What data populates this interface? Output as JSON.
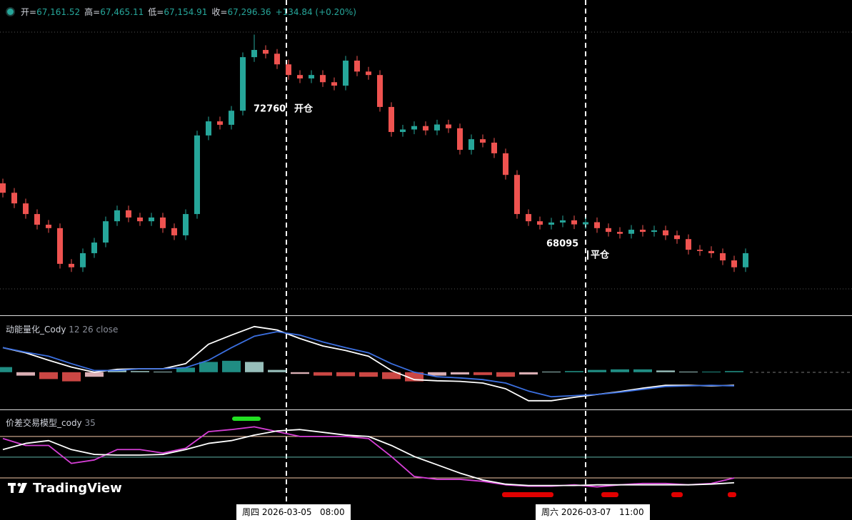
{
  "header": {
    "items": [
      {
        "label": "开=",
        "value": "67,161.52"
      },
      {
        "label": "高=",
        "value": "67,465.11"
      },
      {
        "label": "低=",
        "value": "67,154.91"
      },
      {
        "label": "收=",
        "value": "67,296.36"
      }
    ],
    "change": "+134.84 (+0.20%)"
  },
  "markers": [
    {
      "price_label": "72760",
      "label": "开仓"
    },
    {
      "price_label": "68095",
      "label": "平仓"
    }
  ],
  "crosshair_labels": [
    "周四 2026-03-05   08:00",
    "周六 2026-03-07   11:00"
  ],
  "logo": "TradingView",
  "chart_data": [
    {
      "type": "candlestick",
      "up_color": "#26a69a",
      "down_color": "#ef5350",
      "ylim": [
        65930,
        74130
      ],
      "open": [
        69300,
        69000,
        68660,
        68320,
        67980,
        67870,
        66730,
        66620,
        67070,
        67410,
        68090,
        68440,
        68210,
        68090,
        68210,
        67870,
        67640,
        68320,
        70830,
        71280,
        71170,
        71620,
        73330,
        73560,
        73440,
        73100,
        72760,
        72650,
        72760,
        72530,
        72420,
        73220,
        72870,
        72760,
        71740,
        70940,
        71020,
        71130,
        70990,
        71180,
        71060,
        70370,
        70710,
        70600,
        70260,
        69570,
        68320,
        68090,
        67980,
        68050,
        68120,
        67990,
        68060,
        67870,
        67750,
        67690,
        67820,
        67750,
        67800,
        67640,
        67520,
        67180,
        67140,
        67070,
        66840,
        66620
      ],
      "high": [
        69450,
        69150,
        68810,
        68470,
        68130,
        68020,
        66880,
        67220,
        67560,
        68240,
        68590,
        68590,
        68360,
        68360,
        68360,
        68020,
        68470,
        70980,
        71430,
        71430,
        71770,
        73480,
        74050,
        73710,
        73590,
        73250,
        72910,
        72910,
        72910,
        72680,
        73370,
        73370,
        73020,
        72910,
        71890,
        71170,
        71280,
        71280,
        71330,
        71330,
        71210,
        70860,
        70860,
        70750,
        70410,
        69720,
        68470,
        68240,
        68200,
        68270,
        68270,
        68210,
        68210,
        68020,
        67900,
        67970,
        67970,
        67950,
        67950,
        67790,
        67670,
        67330,
        67290,
        67220,
        66990,
        67220
      ],
      "low": [
        68850,
        68510,
        68170,
        67830,
        67720,
        66580,
        66470,
        66470,
        66920,
        67260,
        67940,
        68060,
        67940,
        67940,
        67720,
        67490,
        67490,
        68170,
        70680,
        71020,
        71020,
        71470,
        73180,
        73290,
        72950,
        72610,
        72500,
        72500,
        72380,
        72270,
        72270,
        72720,
        72610,
        71590,
        70790,
        70790,
        70870,
        70840,
        70840,
        70910,
        70220,
        70220,
        70450,
        70110,
        69420,
        68170,
        67940,
        67830,
        67830,
        67900,
        67840,
        67840,
        67720,
        67600,
        67540,
        67540,
        67600,
        67600,
        67490,
        67370,
        67030,
        66990,
        66920,
        66690,
        66470,
        66470
      ],
      "close": [
        69000,
        68660,
        68320,
        67980,
        67870,
        66730,
        66620,
        67070,
        67410,
        68090,
        68440,
        68210,
        68090,
        68210,
        67870,
        67640,
        68320,
        70830,
        71280,
        71170,
        71620,
        73330,
        73560,
        73440,
        73100,
        72760,
        72650,
        72760,
        72530,
        72420,
        73220,
        72870,
        72760,
        71740,
        70940,
        71020,
        71130,
        70990,
        71180,
        71060,
        70370,
        70710,
        70600,
        70260,
        69570,
        68320,
        68090,
        67980,
        68050,
        68120,
        67990,
        68060,
        67870,
        67750,
        67690,
        67820,
        67750,
        67800,
        67640,
        67520,
        67180,
        67140,
        67070,
        66840,
        66620,
        67070
      ]
    },
    {
      "type": "macd",
      "title": "动能量化_Cody",
      "subtitle": "12 26 close",
      "ylim": [
        -640,
        960
      ],
      "series": [
        {
          "color": "#ffffff",
          "values": [
            430,
            340,
            210,
            90,
            0,
            50,
            60,
            60,
            150,
            490,
            650,
            800,
            740,
            590,
            460,
            380,
            280,
            30,
            -130,
            -150,
            -160,
            -190,
            -290,
            -500,
            -500,
            -440,
            -390,
            -340,
            -280,
            -230,
            -230,
            -240,
            -230
          ]
        },
        {
          "color": "#3b6fe0",
          "values": [
            430,
            350,
            280,
            150,
            30,
            30,
            60,
            60,
            80,
            210,
            430,
            630,
            710,
            650,
            530,
            430,
            340,
            150,
            0,
            -80,
            -100,
            -130,
            -190,
            -330,
            -430,
            -410,
            -390,
            -350,
            -300,
            -250,
            -240,
            -230,
            -240
          ]
        }
      ],
      "histogram": {
        "up_colors": [
          "#26a69a",
          "#b2dfdb"
        ],
        "down_colors": [
          "#ef5350",
          "#ffcdd2"
        ],
        "values": [
          90,
          -60,
          -120,
          -160,
          -80,
          40,
          20,
          10,
          80,
          180,
          200,
          180,
          40,
          -30,
          -60,
          -70,
          -80,
          -120,
          -160,
          -60,
          -40,
          -50,
          -80,
          -40,
          10,
          20,
          40,
          50,
          50,
          30,
          10,
          10,
          20
        ]
      }
    },
    {
      "type": "line",
      "title": "价差交易模型_cody",
      "subtitle": "35",
      "ylim": [
        -11,
        115
      ],
      "levels": [
        80,
        50,
        20
      ],
      "level_colors": [
        "#f4c7a8",
        "#5fb3a8",
        "#f4c7a8"
      ],
      "series": [
        {
          "color": "#d63fd6",
          "values": [
            77,
            67,
            67,
            41,
            46,
            61,
            61,
            56,
            63,
            87,
            90,
            94,
            87,
            80,
            80,
            80,
            77,
            51,
            22,
            18,
            18,
            15,
            10,
            8,
            8,
            10,
            7,
            10,
            12,
            12,
            10,
            12,
            20
          ]
        },
        {
          "color": "#ffffff",
          "values": [
            61,
            70,
            74,
            61,
            54,
            53,
            53,
            54,
            61,
            70,
            74,
            82,
            88,
            90,
            86,
            82,
            80,
            67,
            51,
            39,
            27,
            17,
            11,
            9,
            9,
            9,
            10,
            10,
            10,
            10,
            10,
            11,
            13
          ]
        }
      ]
    }
  ]
}
